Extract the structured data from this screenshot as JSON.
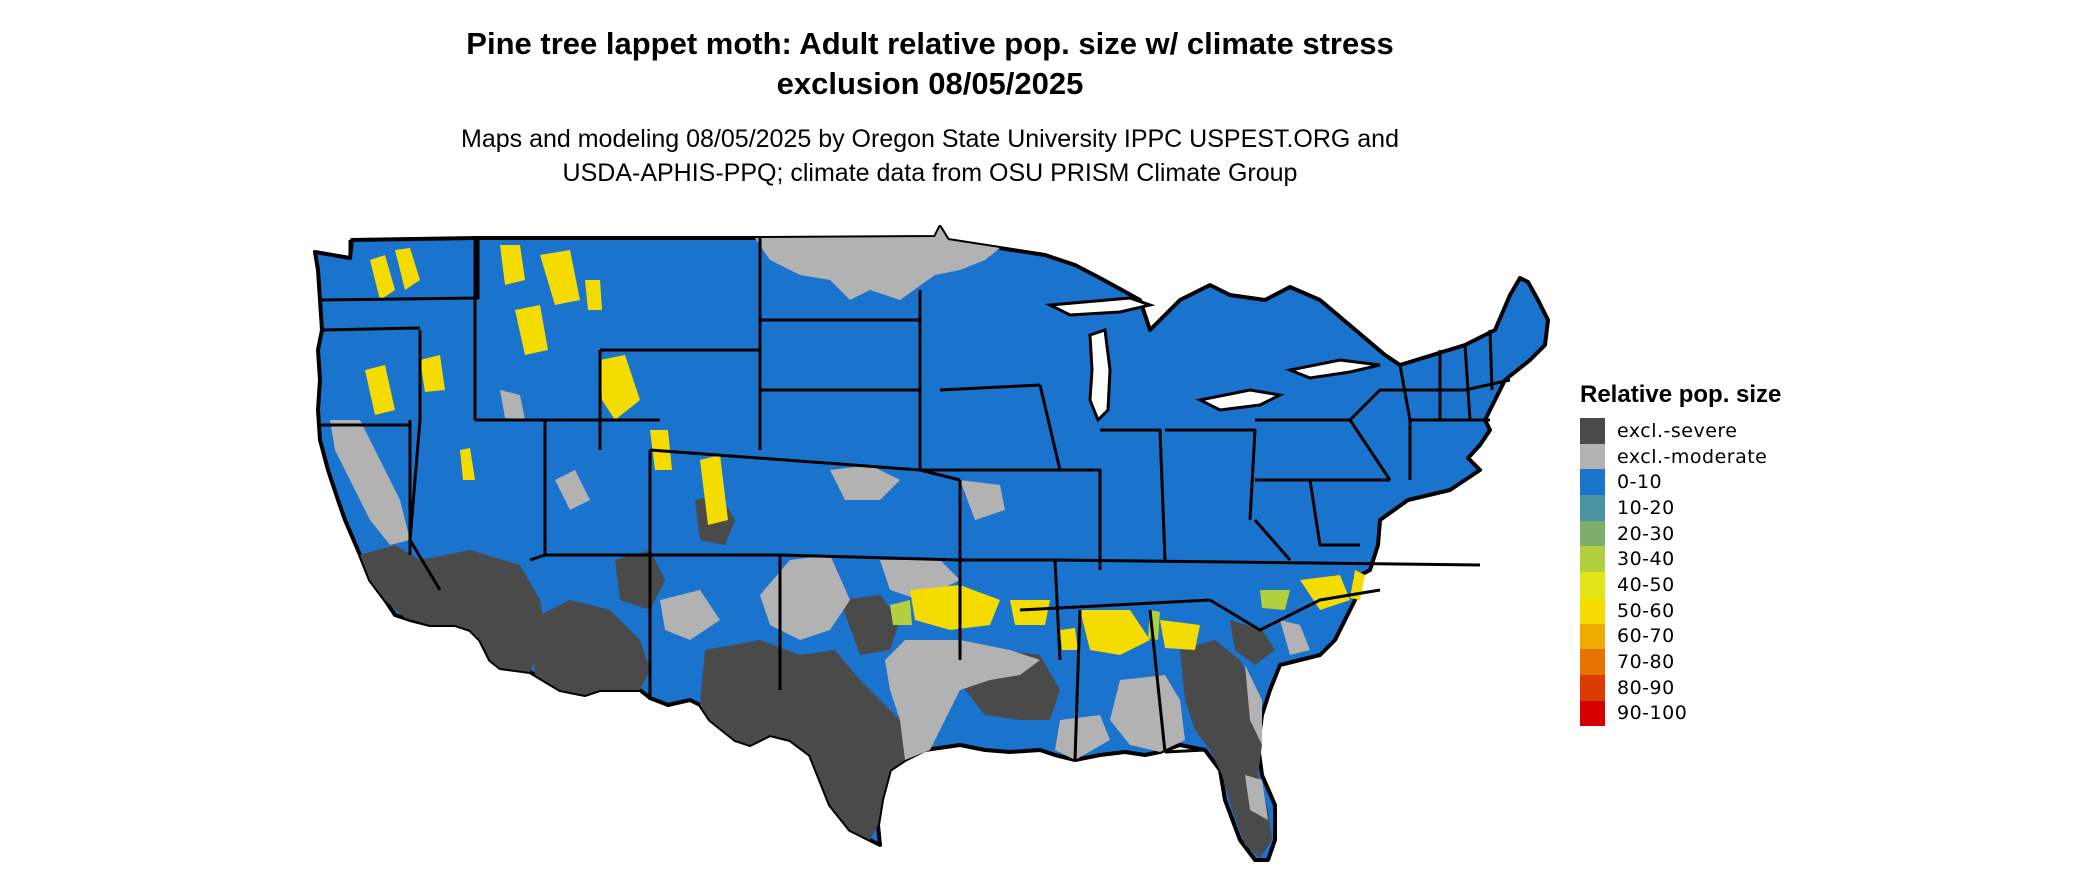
{
  "figure": {
    "title_line1": "Pine tree lappet moth: Adult relative pop. size w/ climate stress",
    "title_line2": "exclusion 08/05/2025",
    "subtitle_line1": "Maps and modeling 08/05/2025 by Oregon State University IPPC USPEST.ORG and",
    "subtitle_line2": "USDA-APHIS-PPQ; climate data from OSU PRISM Climate Group"
  },
  "legend": {
    "title": "Relative pop. size",
    "items": [
      {
        "label": "excl.-severe",
        "color": "#4a4a4a"
      },
      {
        "label": "excl.-moderate",
        "color": "#b2b2b2"
      },
      {
        "label": "0-10",
        "color": "#1a73cc"
      },
      {
        "label": "10-20",
        "color": "#4993a0"
      },
      {
        "label": "20-30",
        "color": "#7caf6e"
      },
      {
        "label": "30-40",
        "color": "#b2cf3e"
      },
      {
        "label": "40-50",
        "color": "#e2e619"
      },
      {
        "label": "50-60",
        "color": "#f5dc00"
      },
      {
        "label": "60-70",
        "color": "#eeaa00"
      },
      {
        "label": "70-80",
        "color": "#e67300"
      },
      {
        "label": "80-90",
        "color": "#dc3c00"
      },
      {
        "label": "90-100",
        "color": "#d40000"
      }
    ]
  },
  "colors": {
    "severe": "#4a4a4a",
    "moderate": "#b2b2b2",
    "low": "#1a73cc",
    "mid": "#f5dc00",
    "border": "#000000"
  }
}
